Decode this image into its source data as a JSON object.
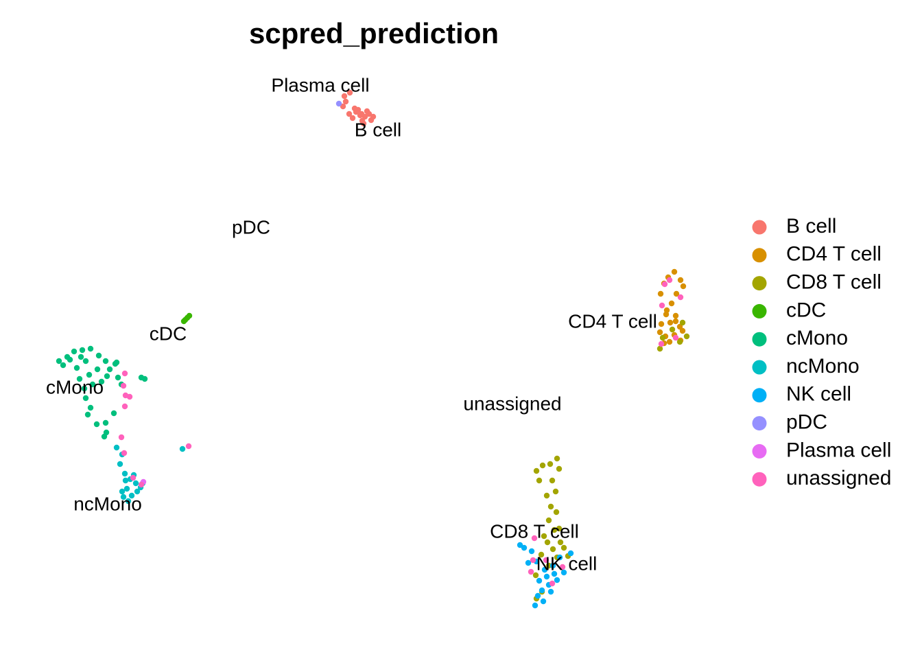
{
  "chart_data": {
    "type": "scatter",
    "title": "scpred_prediction",
    "xlabel": "",
    "ylabel": "",
    "grid": false,
    "axes_visible": false,
    "legend_position": "right",
    "series": [
      {
        "name": "B cell",
        "color": "#F8766D",
        "points": [
          [
            519,
            163
          ],
          [
            525,
            168
          ],
          [
            532,
            170
          ],
          [
            538,
            166
          ],
          [
            514,
            172
          ],
          [
            541,
            175
          ],
          [
            528,
            176
          ],
          [
            509,
            166
          ],
          [
            535,
            162
          ],
          [
            522,
            160
          ],
          [
            502,
            140
          ],
          [
            504,
            148
          ],
          [
            510,
            135
          ],
          [
            500,
            155
          ],
          [
            530,
            180
          ],
          [
            544,
            170
          ],
          [
            517,
            158
          ],
          [
            527,
            166
          ]
        ]
      },
      {
        "name": "CD4 T cell",
        "color": "#D89000",
        "points": [
          [
            963,
            428
          ],
          [
            968,
            413
          ],
          [
            974,
            404
          ],
          [
            983,
            396
          ],
          [
            992,
            408
          ],
          [
            996,
            417
          ],
          [
            986,
            428
          ],
          [
            979,
            442
          ],
          [
            972,
            452
          ],
          [
            985,
            460
          ],
          [
            977,
            470
          ],
          [
            964,
            472
          ],
          [
            991,
            476
          ],
          [
            970,
            490
          ],
          [
            983,
            488
          ],
          [
            962,
            484
          ],
          [
            992,
            496
          ],
          [
            976,
            498
          ],
          [
            968,
            500
          ],
          [
            985,
            468
          ],
          [
            971,
            458
          ],
          [
            995,
            482
          ]
        ]
      },
      {
        "name": "CD8 T cell",
        "color": "#A3A500",
        "points": [
          [
            782,
            686
          ],
          [
            791,
            678
          ],
          [
            802,
            676
          ],
          [
            812,
            668
          ],
          [
            815,
            683
          ],
          [
            805,
            700
          ],
          [
            797,
            722
          ],
          [
            803,
            738
          ],
          [
            811,
            746
          ],
          [
            800,
            758
          ],
          [
            808,
            772
          ],
          [
            793,
            781
          ],
          [
            817,
            790
          ],
          [
            806,
            800
          ],
          [
            789,
            808
          ],
          [
            822,
            798
          ],
          [
            812,
            812
          ],
          [
            800,
            824
          ],
          [
            781,
            838
          ],
          [
            790,
            862
          ],
          [
            782,
            872
          ],
          [
            828,
            810
          ],
          [
            815,
            770
          ],
          [
            798,
            790
          ],
          [
            1001,
            490
          ],
          [
            991,
            498
          ],
          [
            966,
            492
          ],
          [
            962,
            508
          ],
          [
            980,
            480
          ],
          [
            995,
            470
          ],
          [
            786,
            700
          ],
          [
            810,
            716
          ]
        ]
      },
      {
        "name": "cDC",
        "color": "#39B600",
        "points": [
          [
            268,
            468
          ],
          [
            273,
            463
          ],
          [
            276,
            460
          ],
          [
            270,
            466
          ]
        ]
      },
      {
        "name": "cMono",
        "color": "#00BF7D",
        "points": [
          [
            86,
            526
          ],
          [
            98,
            520
          ],
          [
            108,
            512
          ],
          [
            120,
            510
          ],
          [
            132,
            508
          ],
          [
            144,
            518
          ],
          [
            154,
            526
          ],
          [
            168,
            530
          ],
          [
            125,
            526
          ],
          [
            112,
            536
          ],
          [
            142,
            538
          ],
          [
            130,
            546
          ],
          [
            156,
            548
          ],
          [
            116,
            552
          ],
          [
            148,
            556
          ],
          [
            172,
            550
          ],
          [
            135,
            560
          ],
          [
            123,
            566
          ],
          [
            177,
            560
          ],
          [
            125,
            580
          ],
          [
            132,
            594
          ],
          [
            128,
            604
          ],
          [
            141,
            618
          ],
          [
            154,
            616
          ],
          [
            166,
            602
          ],
          [
            152,
            636
          ],
          [
            155,
            630
          ],
          [
            206,
            550
          ],
          [
            211,
            552
          ],
          [
            92,
            532
          ],
          [
            102,
            524
          ],
          [
            160,
            538
          ],
          [
            170,
            528
          ],
          [
            118,
            520
          ]
        ]
      },
      {
        "name": "ncMono",
        "color": "#00BFC4",
        "points": [
          [
            170,
            652
          ],
          [
            178,
            662
          ],
          [
            175,
            676
          ],
          [
            182,
            690
          ],
          [
            190,
            698
          ],
          [
            198,
            704
          ],
          [
            205,
            710
          ],
          [
            185,
            712
          ],
          [
            178,
            716
          ],
          [
            192,
            722
          ],
          [
            200,
            716
          ],
          [
            187,
            730
          ],
          [
            180,
            724
          ],
          [
            208,
            704
          ],
          [
            195,
            692
          ],
          [
            183,
            700
          ],
          [
            266,
            654
          ]
        ]
      },
      {
        "name": "NK cell",
        "color": "#00B0F6",
        "points": [
          [
            758,
            794
          ],
          [
            764,
            798
          ],
          [
            775,
            803
          ],
          [
            782,
            818
          ],
          [
            794,
            830
          ],
          [
            806,
            824
          ],
          [
            816,
            812
          ],
          [
            822,
            834
          ],
          [
            812,
            845
          ],
          [
            800,
            852
          ],
          [
            790,
            860
          ],
          [
            784,
            868
          ],
          [
            792,
            876
          ],
          [
            780,
            882
          ],
          [
            797,
            840
          ],
          [
            808,
            836
          ],
          [
            770,
            820
          ],
          [
            832,
            806
          ],
          [
            786,
            846
          ],
          [
            803,
            862
          ]
        ]
      },
      {
        "name": "pDC",
        "color": "#9590FF",
        "points": [
          [
            494,
            151
          ]
        ]
      },
      {
        "name": "Plasma cell",
        "color": "#E76BF3",
        "points": [
          [
            209,
            702
          ]
        ]
      },
      {
        "name": "unassigned",
        "color": "#FF62BC",
        "points": [
          [
            965,
            445
          ],
          [
            992,
            433
          ],
          [
            976,
            408
          ],
          [
            985,
            492
          ],
          [
            964,
            501
          ],
          [
            969,
            414
          ],
          [
            180,
            562
          ],
          [
            183,
            576
          ],
          [
            189,
            578
          ],
          [
            182,
            592
          ],
          [
            177,
            637
          ],
          [
            181,
            660
          ],
          [
            206,
            706
          ],
          [
            194,
            696
          ],
          [
            275,
            650
          ],
          [
            182,
            544
          ],
          [
            777,
            816
          ],
          [
            774,
            833
          ],
          [
            820,
            826
          ],
          [
            805,
            850
          ],
          [
            779,
            784
          ],
          [
            796,
            816
          ]
        ]
      }
    ],
    "point_labels": [
      {
        "text": "Plasma cell",
        "x": 467,
        "y": 126
      },
      {
        "text": "B cell",
        "x": 551,
        "y": 191
      },
      {
        "text": "pDC",
        "x": 366,
        "y": 333
      },
      {
        "text": "cDC",
        "x": 245,
        "y": 488
      },
      {
        "text": "cMono",
        "x": 109,
        "y": 566
      },
      {
        "text": "ncMono",
        "x": 157,
        "y": 736
      },
      {
        "text": "CD4 T cell",
        "x": 893,
        "y": 470
      },
      {
        "text": "unassigned",
        "x": 747,
        "y": 590
      },
      {
        "text": "CD8 T cell",
        "x": 779,
        "y": 776
      },
      {
        "text": "NK cell",
        "x": 826,
        "y": 823
      }
    ]
  }
}
